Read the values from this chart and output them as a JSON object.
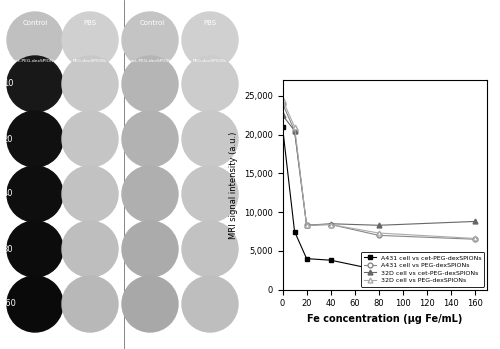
{
  "fe_conc": [
    0,
    10,
    20,
    40,
    80,
    160
  ],
  "A431_cet": [
    21000,
    7500,
    4000,
    3800,
    2500,
    2000
  ],
  "A431_peg": [
    24000,
    20500,
    8300,
    8400,
    7000,
    6500
  ],
  "D32_cet": [
    22500,
    20500,
    8300,
    8500,
    8300,
    8800
  ],
  "D32_peg": [
    24500,
    21000,
    8300,
    8400,
    7300,
    6600
  ],
  "ylabel": "MRI signal intensity (a.u.)",
  "xlabel": "Fe concentration (μg Fe/mL)",
  "ylim": [
    0,
    27000
  ],
  "yticks": [
    0,
    5000,
    10000,
    15000,
    20000,
    25000
  ],
  "xlim": [
    0,
    170
  ],
  "xticks": [
    0,
    20,
    40,
    60,
    80,
    100,
    120,
    140,
    160
  ],
  "legend_labels": [
    "A431 cell vs cet-PEG-dexSPIONs",
    "A431 cell vs PEG-dexSPIONs",
    "32D cell vs cet-PEG-dexSPIONs",
    "32D cell vs PEG-dexSPIONs"
  ]
}
